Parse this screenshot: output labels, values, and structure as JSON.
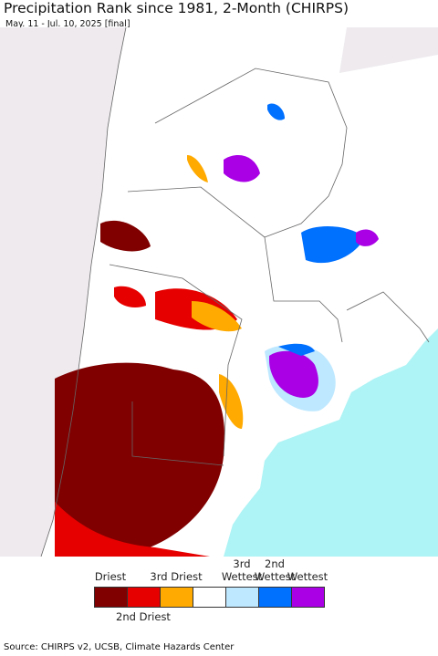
{
  "header": {
    "title": "Precipitation Rank since 1981, 2-Month (CHIRPS)",
    "subtitle": "May. 11 - Jul. 10, 2025 [final]"
  },
  "legend": {
    "items": [
      {
        "label": "Driest",
        "color": "#800000"
      },
      {
        "label": "2nd Driest",
        "color": "#e60000"
      },
      {
        "label": "3rd Driest",
        "color": "#ffaa00"
      },
      {
        "color": "#ffffff"
      },
      {
        "label": "3rd Wettest",
        "color": "#bee8ff"
      },
      {
        "label": "2nd Wettest",
        "color": "#0070ff"
      },
      {
        "label": "Wettest",
        "color": "#a900e6"
      }
    ]
  },
  "footer": {
    "source": "Source: CHIRPS v2, UCSB, Climate Hazards Center"
  }
}
